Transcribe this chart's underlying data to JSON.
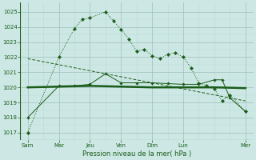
{
  "xlabel": "Pression niveau de la mer( hPa )",
  "bg_color": "#cde8e4",
  "grid_major_color": "#9dbfbb",
  "grid_minor_color": "#b8d8d4",
  "line_color": "#1a5c1a",
  "ylim": [
    1016.5,
    1025.6
  ],
  "xlim": [
    -0.5,
    14.5
  ],
  "yticks": [
    1017,
    1018,
    1019,
    1020,
    1021,
    1022,
    1023,
    1024,
    1025
  ],
  "xtick_pos": [
    0,
    2,
    4,
    6,
    8,
    10,
    14
  ],
  "xtick_labels": [
    "Sam",
    "Mar",
    "Jeu",
    "Ven",
    "Dim",
    "Lun",
    "Mer"
  ],
  "line1_x": [
    0,
    2,
    3,
    3.5,
    4,
    5,
    5.5,
    6,
    6.5,
    7,
    7.5,
    8,
    8.5,
    9,
    9.5,
    10,
    10.5,
    11,
    11.5,
    12,
    12.5,
    13,
    14
  ],
  "line1_y": [
    1017.0,
    1022.0,
    1023.9,
    1024.5,
    1024.6,
    1025.0,
    1024.4,
    1023.85,
    1023.2,
    1022.4,
    1022.5,
    1022.1,
    1021.9,
    1022.2,
    1022.3,
    1022.0,
    1021.3,
    1020.3,
    1020.1,
    1019.9,
    1019.1,
    1019.5,
    1018.4
  ],
  "line2_x": [
    0,
    2,
    4,
    6,
    8,
    10,
    12,
    14
  ],
  "line2_y": [
    1020.0,
    1020.05,
    1020.1,
    1020.05,
    1020.0,
    1020.0,
    1020.0,
    1019.95
  ],
  "line3_x": [
    0,
    2,
    3,
    4,
    5,
    6,
    7,
    8,
    9,
    10,
    11,
    12,
    12.5,
    13,
    14
  ],
  "line3_y": [
    1018.0,
    1020.1,
    1020.1,
    1020.2,
    1020.9,
    1020.3,
    1020.3,
    1020.3,
    1020.25,
    1020.2,
    1020.2,
    1020.5,
    1020.5,
    1019.3,
    1018.4
  ],
  "line4_x": [
    0,
    14
  ],
  "line4_y": [
    1021.9,
    1019.1
  ],
  "minor_xticks": [
    1,
    3,
    5,
    7,
    9,
    11,
    12,
    13
  ]
}
